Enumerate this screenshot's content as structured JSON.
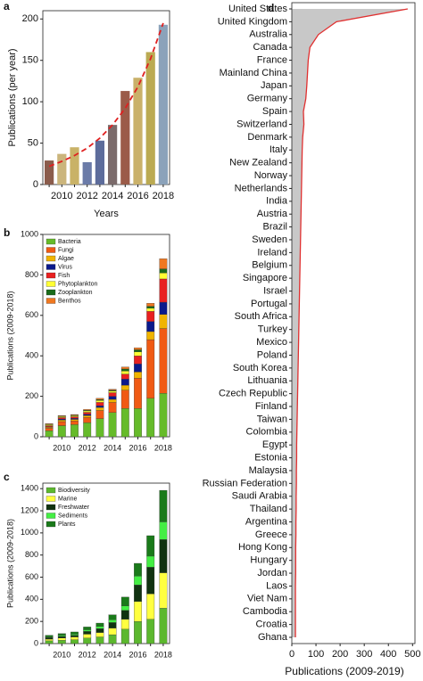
{
  "chart_data": [
    {
      "type": "bar",
      "label": "a",
      "ylabel": "Publications (per year)",
      "xlabel": "Years",
      "categories": [
        null,
        "2010",
        null,
        "2012",
        null,
        "2014",
        null,
        "2016",
        null,
        "2018"
      ],
      "values": [
        29,
        37,
        45,
        27,
        53,
        72,
        113,
        129,
        160,
        193
      ],
      "colors": [
        "#8b5c4c",
        "#cbb57c",
        "#c9b267",
        "#6b7ba8",
        "#5d6c9b",
        "#7b6b6b",
        "#9b5b49",
        "#cab16a",
        "#bbaa52",
        "#8ba2ba"
      ],
      "trend": {
        "color": "#e02020",
        "values": [
          22,
          28,
          35,
          44,
          56,
          72,
          92,
          118,
          152,
          195
        ]
      },
      "ylim": [
        0,
        210
      ],
      "yticks": [
        0,
        50,
        100,
        150,
        200
      ]
    },
    {
      "type": "stacked_bar",
      "label": "b",
      "ylabel": "Publications (2009-2018)",
      "categories": [
        null,
        "2010",
        null,
        "2012",
        null,
        "2014",
        null,
        "2016",
        null,
        "2018"
      ],
      "series": [
        {
          "name": "Bacteria",
          "color": "#66bb2a",
          "values": [
            30,
            55,
            60,
            70,
            90,
            120,
            140,
            140,
            190,
            215
          ]
        },
        {
          "name": "Fungi",
          "color": "#f05a14",
          "values": [
            12,
            20,
            18,
            25,
            40,
            50,
            90,
            150,
            290,
            320
          ]
        },
        {
          "name": "Algae",
          "color": "#f0b400",
          "values": [
            5,
            8,
            8,
            10,
            15,
            15,
            25,
            30,
            40,
            70
          ]
        },
        {
          "name": "Virus",
          "color": "#0a1a8c",
          "values": [
            3,
            5,
            5,
            6,
            8,
            15,
            30,
            40,
            50,
            60
          ]
        },
        {
          "name": "Fish",
          "color": "#e82020",
          "values": [
            5,
            7,
            8,
            10,
            17,
            18,
            25,
            40,
            50,
            115
          ]
        },
        {
          "name": "Phytoplankton",
          "color": "#ffff33",
          "values": [
            5,
            5,
            5,
            7,
            10,
            8,
            15,
            20,
            15,
            30
          ]
        },
        {
          "name": "Zooplankton",
          "color": "#1a6b1a",
          "values": [
            2,
            2,
            3,
            3,
            4,
            4,
            10,
            10,
            10,
            20
          ]
        },
        {
          "name": "Benthos",
          "color": "#f07820",
          "values": [
            3,
            3,
            3,
            4,
            6,
            5,
            10,
            10,
            15,
            50
          ]
        }
      ],
      "ylim": [
        0,
        1000
      ],
      "yticks": [
        0,
        200,
        400,
        600,
        800,
        1000
      ]
    },
    {
      "type": "stacked_bar",
      "label": "c",
      "ylabel": "Publications (2009-2018)",
      "categories": [
        null,
        "2010",
        null,
        "2012",
        null,
        "2014",
        null,
        "2016",
        null,
        "2018"
      ],
      "series": [
        {
          "name": "Biodiversity",
          "color": "#5cb82e",
          "values": [
            25,
            30,
            35,
            50,
            60,
            80,
            130,
            200,
            220,
            320
          ]
        },
        {
          "name": "Marine",
          "color": "#ffff40",
          "values": [
            15,
            20,
            25,
            35,
            40,
            60,
            90,
            180,
            230,
            320
          ]
        },
        {
          "name": "Freshwater",
          "color": "#113311",
          "values": [
            15,
            15,
            15,
            25,
            35,
            50,
            80,
            150,
            240,
            300
          ]
        },
        {
          "name": "Sediments",
          "color": "#44ee44",
          "values": [
            5,
            10,
            10,
            15,
            20,
            25,
            40,
            80,
            100,
            160
          ]
        },
        {
          "name": "Plants",
          "color": "#1a7a1a",
          "values": [
            15,
            15,
            20,
            25,
            30,
            45,
            80,
            115,
            185,
            285
          ]
        }
      ],
      "ylim": [
        0,
        1450
      ],
      "yticks": [
        0,
        200,
        400,
        600,
        800,
        1000,
        1200,
        1400
      ]
    },
    {
      "type": "area_h",
      "label": "d",
      "xlabel": "Publications (2009-2019)",
      "categories": [
        "United States",
        "United Kingdom",
        "Australia",
        "Canada",
        "France",
        "Mainland China",
        "Japan",
        "Germany",
        "Spain",
        "Switzerland",
        "Denmark",
        "Italy",
        "New Zealand",
        "Norway",
        "Netherlands",
        "India",
        "Austria",
        "Brazil",
        "Sweden",
        "Ireland",
        "Belgium",
        "Singapore",
        "Israel",
        "Portugal",
        "South Africa",
        "Turkey",
        "Mexico",
        "Poland",
        "South Korea",
        "Lithuania",
        "Czech Republic",
        "Finland",
        "Taiwan",
        "Colombia",
        "Egypt",
        "Estonia",
        "Malaysia",
        "Russian Federation",
        "Saudi Arabia",
        "Thailand",
        "Argentina",
        "Greece",
        "Hong Kong",
        "Hungary",
        "Jordan",
        "Laos",
        "Viet Nam",
        "Cambodia",
        "Croatia",
        "Ghana"
      ],
      "values": [
        480,
        185,
        110,
        75,
        68,
        65,
        62,
        58,
        48,
        50,
        45,
        43,
        42,
        41,
        40,
        39,
        38,
        37,
        36,
        35,
        34,
        33,
        32,
        31,
        30,
        29,
        28,
        27,
        26,
        25,
        24,
        23,
        22,
        21,
        20,
        20,
        19,
        19,
        18,
        18,
        17,
        17,
        16,
        16,
        16,
        15,
        15,
        15,
        15,
        15
      ],
      "color": "#e03030",
      "fill": "#c8c8c8",
      "xlim": [
        0,
        510
      ],
      "xticks": [
        0,
        100,
        200,
        300,
        400,
        500
      ]
    }
  ]
}
